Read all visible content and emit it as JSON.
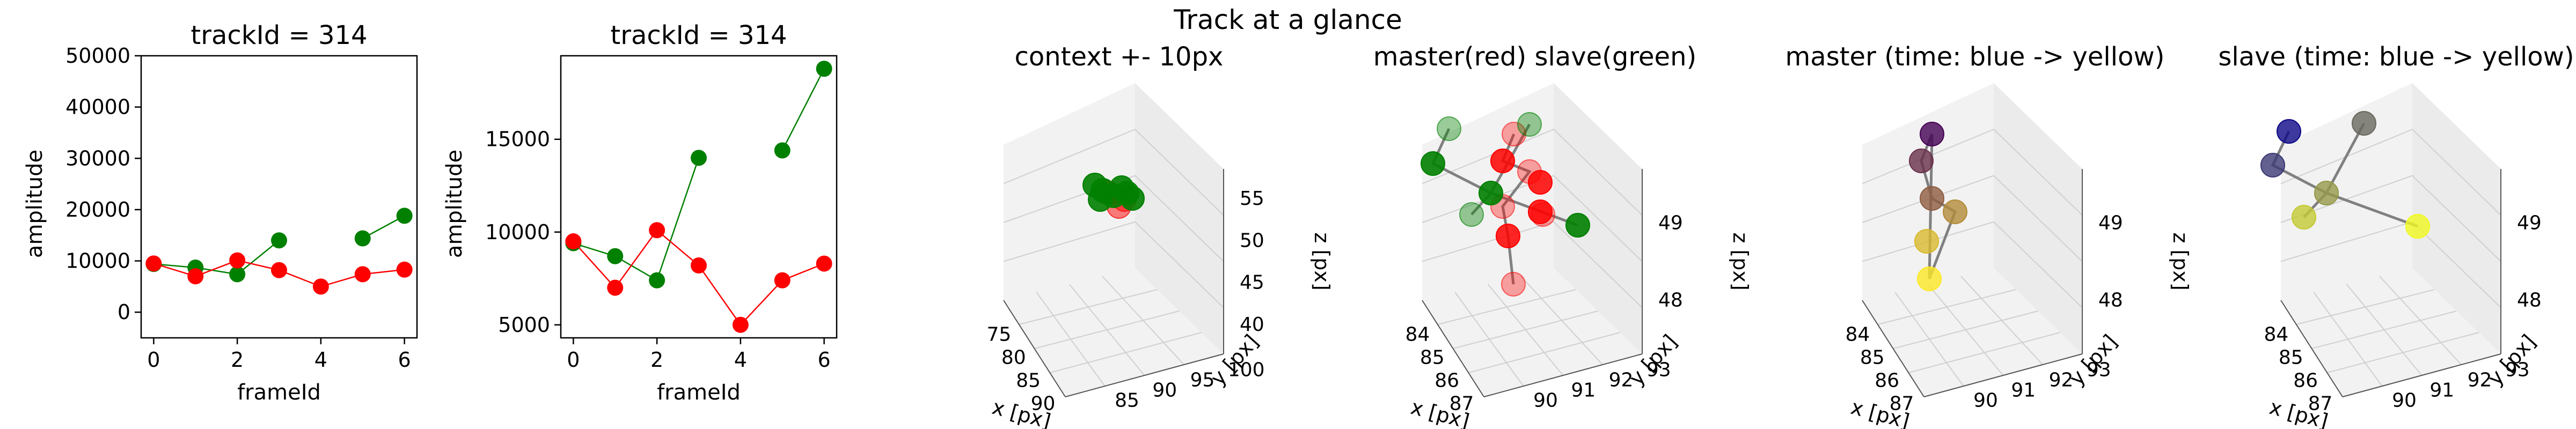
{
  "figure": {
    "suptitle": "Track at a glance",
    "colors": {
      "red": "#ff0000",
      "green": "#008000",
      "edge": "#808080",
      "viridis_start": "#440154",
      "plasma_start": "#0d0887"
    }
  },
  "chart_data": [
    {
      "type": "line",
      "title": "trackId = 314",
      "xlabel": "frameId",
      "ylabel": "amplitude",
      "xlim": [
        -0.3,
        6.3
      ],
      "ylim": [
        -5000,
        50000
      ],
      "xticks": [
        "0",
        "2",
        "4",
        "6"
      ],
      "yticks": [
        "0",
        "10000",
        "20000",
        "30000",
        "40000",
        "50000"
      ],
      "series": [
        {
          "color": "#008000",
          "x": [
            0,
            1,
            2,
            3
          ],
          "y": [
            9400,
            8700,
            7400,
            14000
          ]
        },
        {
          "color": "#008000",
          "x": [
            5,
            6
          ],
          "y": [
            14400,
            18800
          ]
        },
        {
          "color": "#ff0000",
          "x": [
            0,
            1,
            2,
            3,
            4,
            5,
            6
          ],
          "y": [
            9500,
            7000,
            10100,
            8200,
            5000,
            7400,
            8300
          ]
        }
      ]
    },
    {
      "type": "line",
      "title": "trackId = 314",
      "xlabel": "frameId",
      "ylabel": "amplitude",
      "xlim": [
        -0.3,
        6.3
      ],
      "ylim": [
        4300,
        19500
      ],
      "xticks": [
        "0",
        "2",
        "4",
        "6"
      ],
      "yticks": [
        "5000",
        "10000",
        "15000"
      ],
      "series": [
        {
          "color": "#008000",
          "x": [
            0,
            1,
            2,
            3
          ],
          "y": [
            9400,
            8700,
            7400,
            14000
          ]
        },
        {
          "color": "#008000",
          "x": [
            5,
            6
          ],
          "y": [
            14400,
            18800
          ]
        },
        {
          "color": "#ff0000",
          "x": [
            0,
            1,
            2,
            3,
            4,
            5,
            6
          ],
          "y": [
            9500,
            7000,
            10100,
            8200,
            5000,
            7400,
            8300
          ]
        }
      ]
    },
    {
      "type": "scatter",
      "title": "context +- 10px",
      "xlabel": "x [px]",
      "ylabel": "y [px]",
      "zlabel": "z [px]",
      "xticks": [
        "75",
        "80",
        "85",
        "90"
      ],
      "yticks": [
        "85",
        "90",
        "95",
        "100"
      ],
      "zticks": [
        "40",
        "45",
        "50",
        "55"
      ]
    },
    {
      "type": "scatter",
      "title": "master(red) slave(green)",
      "xlabel": "x [px]",
      "ylabel": "y [px]",
      "zlabel": "z [px]",
      "xticks": [
        "84",
        "85",
        "86",
        "87"
      ],
      "yticks": [
        "90",
        "91",
        "92",
        "93"
      ],
      "zticks": [
        "48",
        "49"
      ]
    },
    {
      "type": "scatter",
      "title": "master (time: blue -> yellow)",
      "xlabel": "x [px]",
      "ylabel": "y [px]",
      "zlabel": "z [px]",
      "xticks": [
        "84",
        "85",
        "86",
        "87"
      ],
      "yticks": [
        "90",
        "91",
        "92",
        "93"
      ],
      "zticks": [
        "48",
        "49"
      ]
    },
    {
      "type": "scatter",
      "title": "slave (time: blue -> yellow)",
      "xlabel": "x [px]",
      "ylabel": "y [px]",
      "zlabel": "z [px]",
      "xticks": [
        "84",
        "85",
        "86",
        "87"
      ],
      "yticks": [
        "90",
        "91",
        "92",
        "93"
      ],
      "zticks": [
        "48",
        "49"
      ]
    }
  ]
}
